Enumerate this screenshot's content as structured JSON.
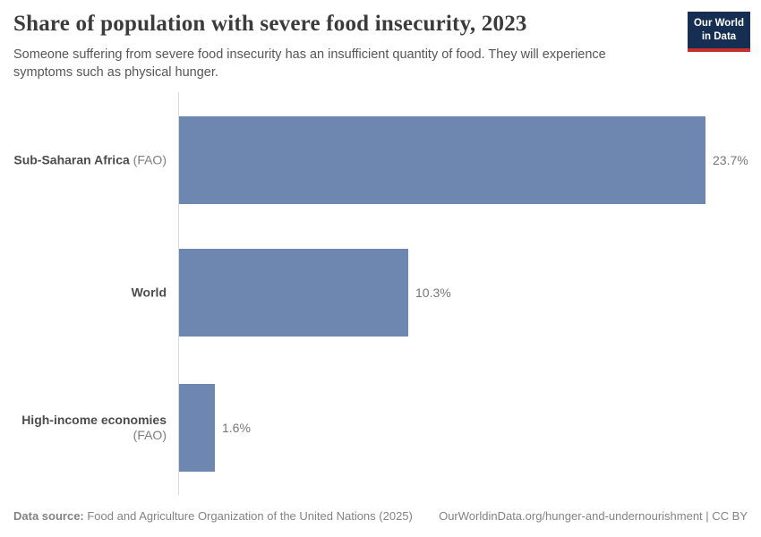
{
  "header": {
    "title": "Share of population with severe food insecurity, 2023",
    "subtitle": "Someone suffering from severe food insecurity has an insufficient quantity of food. They will experience symptoms such as physical hunger.",
    "logo": {
      "line1": "Our World",
      "line2": "in Data",
      "background_color": "#152e52",
      "accent_color": "#c5302c"
    }
  },
  "chart_data": {
    "type": "bar",
    "orientation": "horizontal",
    "title": "Share of population with severe food insecurity, 2023",
    "xlabel": "",
    "ylabel": "",
    "xlim": [
      0,
      24
    ],
    "grid": false,
    "legend": false,
    "bar_color": "#6e87b0",
    "axis_line_color": "#dadada",
    "categories": [
      "Sub-Saharan Africa (FAO)",
      "World",
      "High-income economies (FAO)"
    ],
    "values": [
      23.7,
      10.3,
      1.6
    ],
    "bars": [
      {
        "label": "Sub-Saharan Africa",
        "suffix": " (FAO)",
        "value": 23.7,
        "value_label": "23.7%"
      },
      {
        "label": "World",
        "suffix": "",
        "value": 10.3,
        "value_label": "10.3%"
      },
      {
        "label": "High-income economies",
        "suffix": " (FAO)",
        "value": 1.6,
        "value_label": "1.6%"
      }
    ]
  },
  "footer": {
    "source_label": "Data source:",
    "source_text": " Food and Agriculture Organization of the United Nations (2025)",
    "link": "OurWorldinData.org/hunger-and-undernourishment | CC BY"
  }
}
